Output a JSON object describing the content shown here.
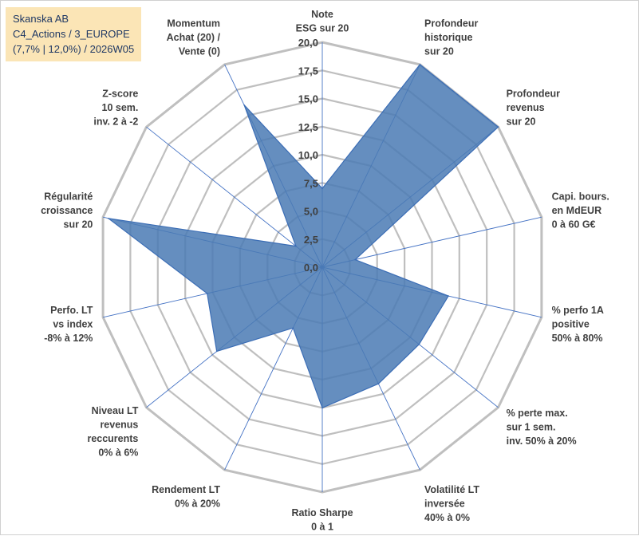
{
  "title_box": {
    "line1": "Skanska AB",
    "line2": "C4_Actions / 3_EUROPE",
    "line3": "(7,7% | 12,0%) / 2026W05"
  },
  "colors": {
    "fill": "#4a7ab4",
    "stroke": "#3b6db5",
    "grid": "#bfbfbf",
    "axis": "#4472c4",
    "text": "#404040",
    "title_bg": "#fbe5b6",
    "title_text": "#1f3864"
  },
  "chart_data": {
    "type": "radar",
    "rlim": [
      0,
      20
    ],
    "grid_step": 2.5,
    "tick_labels": [
      "0,0",
      "2,5",
      "5,0",
      "7,5",
      "10,0",
      "12,5",
      "15,0",
      "17,5",
      "20,0"
    ],
    "axes": [
      {
        "label": [
          "Note",
          "ESG sur 20"
        ],
        "value": 7.0
      },
      {
        "label": [
          "Profondeur",
          "historique",
          "sur 20"
        ],
        "value": 20.0
      },
      {
        "label": [
          "Profondeur",
          "revenus",
          "sur 20"
        ],
        "value": 20.0
      },
      {
        "label": [
          "Capi. bours.",
          "en MdEUR",
          "0 à 60 G€"
        ],
        "value": 3.0
      },
      {
        "label": [
          "% perfo 1A",
          "positive",
          "50% à 80%"
        ],
        "value": 11.5
      },
      {
        "label": [
          "% perte max.",
          "sur 1 sem.",
          "inv. 50% à 20%"
        ],
        "value": 11.0
      },
      {
        "label": [
          "Volatilité LT",
          "inversée",
          "40% à 0%"
        ],
        "value": 11.5
      },
      {
        "label": [
          "Ratio Sharpe",
          "0 à 1"
        ],
        "value": 12.5
      },
      {
        "label": [
          "Rendement LT",
          "0% à 20%"
        ],
        "value": 6.0
      },
      {
        "label": [
          "Niveau LT",
          "revenus",
          "reccurents",
          "0% à 6%"
        ],
        "value": 12.0
      },
      {
        "label": [
          "Perfo. LT",
          "vs index",
          "-8% à 12%"
        ],
        "value": 10.5
      },
      {
        "label": [
          "Régularité",
          "croissance",
          "sur 20"
        ],
        "value": 19.5
      },
      {
        "label": [
          "Z-score",
          "10 sem.",
          "inv. 2 à -2"
        ],
        "value": 3.0
      },
      {
        "label": [
          "Momentum",
          "Achat (20) /",
          "Vente (0)"
        ],
        "value": 16.0
      }
    ]
  }
}
